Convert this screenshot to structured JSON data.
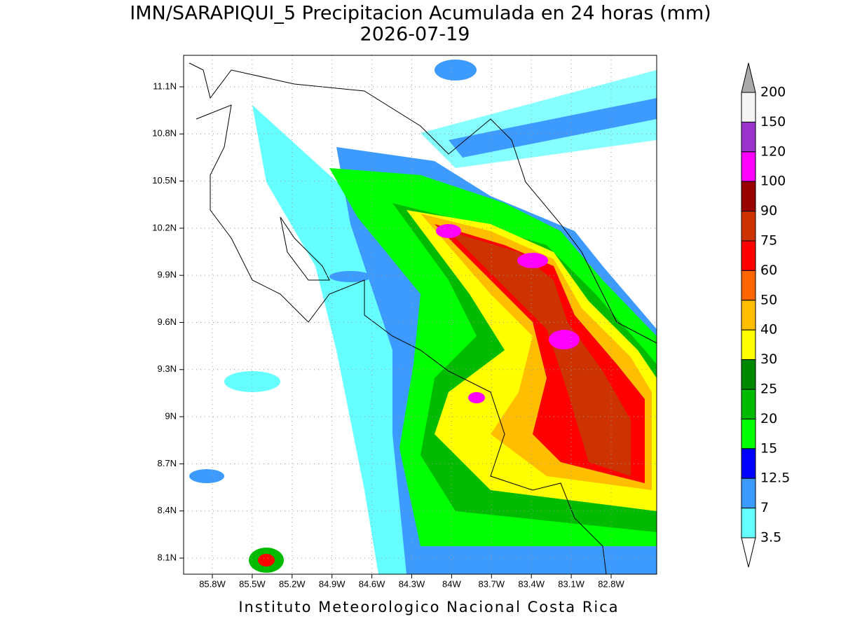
{
  "title": "IMN/SARAPIQUI_5 Precipitacion Acumulada en 24 horas (mm)",
  "subtitle": "2026-07-19",
  "map": {
    "yticks": [
      "11.1N",
      "10.8N",
      "10.5N",
      "10.2N",
      "9.9N",
      "9.6N",
      "9.3N",
      "9N",
      "8.7N",
      "8.4N",
      "8.1N"
    ],
    "xticks": [
      "85.8W",
      "85.5W",
      "85.2W",
      "84.9W",
      "84.6W",
      "84.3W",
      "84W",
      "83.7W",
      "83.4W",
      "83.1W",
      "82.8W"
    ]
  },
  "colorbar": {
    "labels": [
      200,
      150,
      120,
      100,
      90,
      75,
      60,
      50,
      40,
      30,
      25,
      20,
      15,
      12.5,
      7,
      3.5
    ],
    "colors": [
      "#f5f5f5",
      "#9933cc",
      "#ff00ff",
      "#990000",
      "#cc3300",
      "#ff0000",
      "#ff6600",
      "#ffbf00",
      "#ffff00",
      "#008800",
      "#00bb00",
      "#00ff00",
      "#0000ff",
      "#3d9bff",
      "#66ffff"
    ],
    "over_color": "#aaaaaa",
    "under_color": "#ffffff"
  },
  "footer": "Instituto Meteorologico Nacional Costa Rica"
}
